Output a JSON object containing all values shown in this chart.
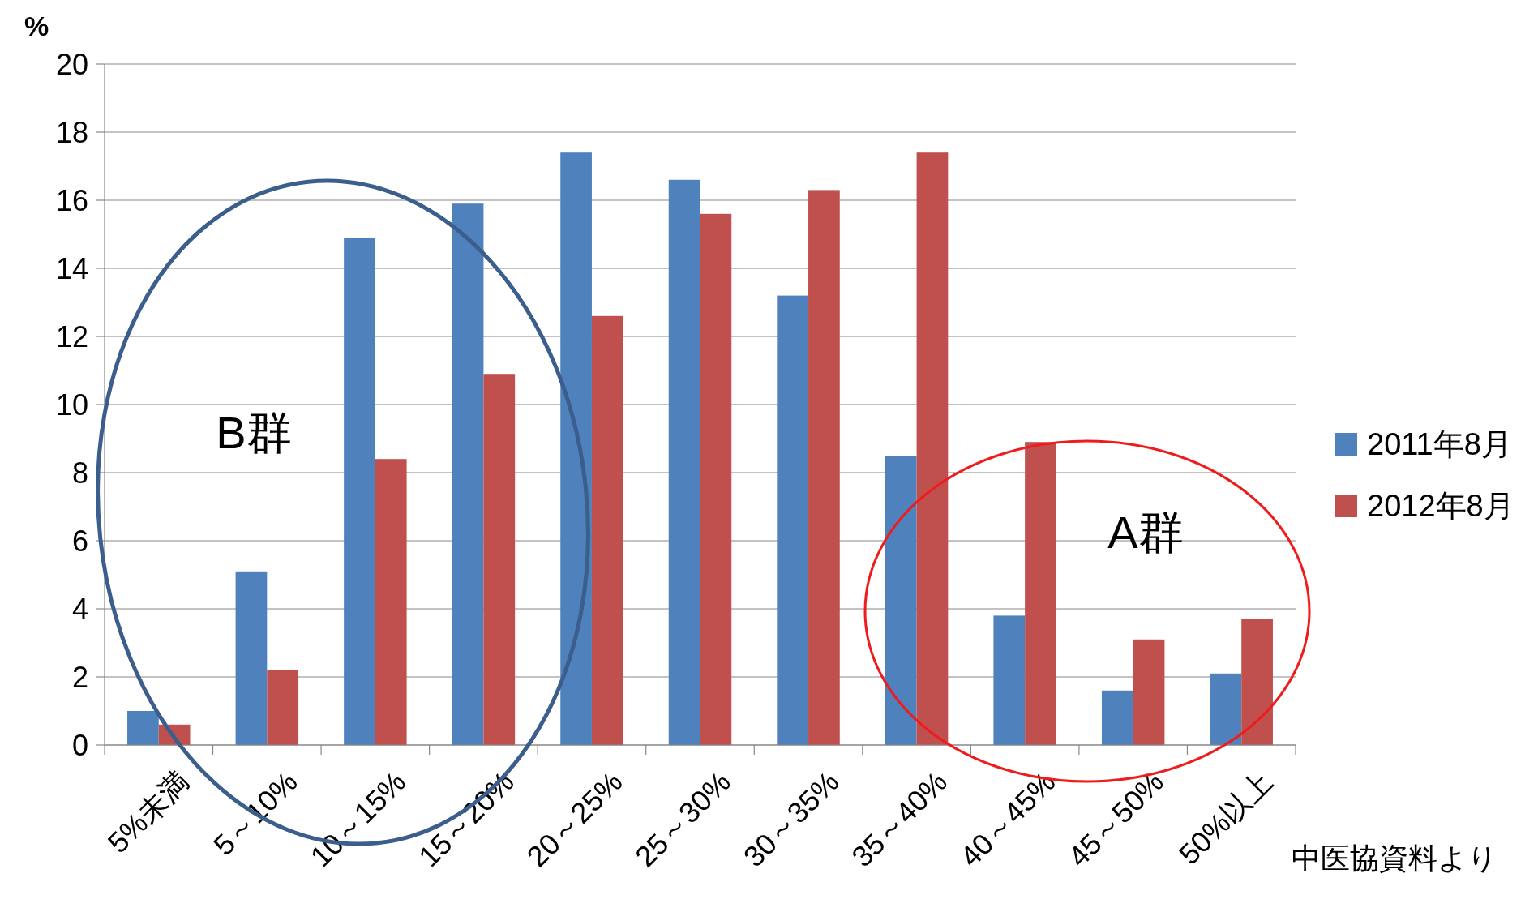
{
  "chart_data": {
    "type": "bar",
    "ylabel": "%",
    "categories": [
      "5%未満",
      "5～10%",
      "10～15%",
      "15～20%",
      "20～25%",
      "25～30%",
      "30～35%",
      "35～40%",
      "40～45%",
      "45～50%",
      "50%以上"
    ],
    "series": [
      {
        "name": "2011年8月",
        "color": "#4f81bd",
        "values": [
          1.0,
          5.1,
          14.9,
          15.9,
          17.4,
          16.6,
          13.2,
          8.5,
          3.8,
          1.6,
          2.1
        ]
      },
      {
        "name": "2012年8月",
        "color": "#c0504d",
        "values": [
          0.6,
          2.2,
          8.4,
          10.9,
          12.6,
          15.6,
          16.3,
          17.4,
          8.9,
          3.1,
          3.7
        ]
      }
    ],
    "ylim": [
      0,
      20
    ],
    "yticks": [
      0,
      2,
      4,
      6,
      8,
      10,
      12,
      14,
      16,
      18,
      20
    ],
    "grid": "y",
    "legend": "right",
    "annotations": [
      "B群",
      "A群",
      "中医協資料より"
    ]
  }
}
